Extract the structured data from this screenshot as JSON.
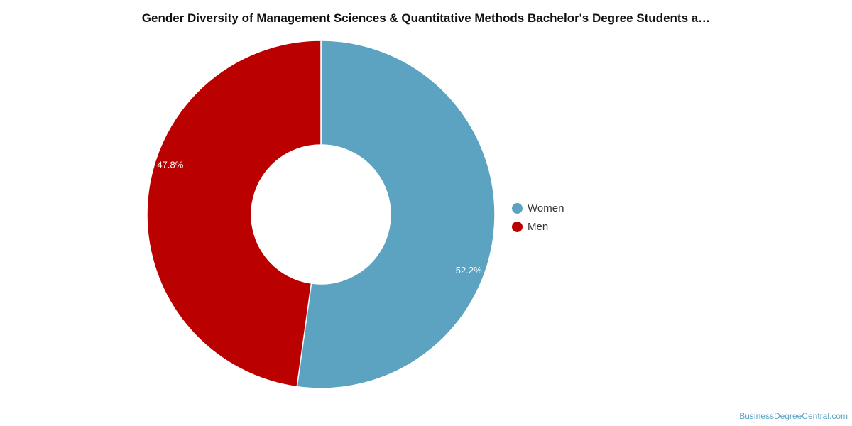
{
  "chart_data": {
    "type": "pie",
    "title": "Gender Diversity of Management Sciences & Quantitative Methods Bachelor's Degree Students a…",
    "slices": [
      {
        "name": "Women",
        "value": 52.2,
        "label": "52.2%",
        "color": "#5ba3c0"
      },
      {
        "name": "Men",
        "value": 47.8,
        "label": "47.8%",
        "color": "#bb0000"
      }
    ],
    "donut": true,
    "legend": "right"
  },
  "watermark": "BusinessDegreeCentral.com"
}
